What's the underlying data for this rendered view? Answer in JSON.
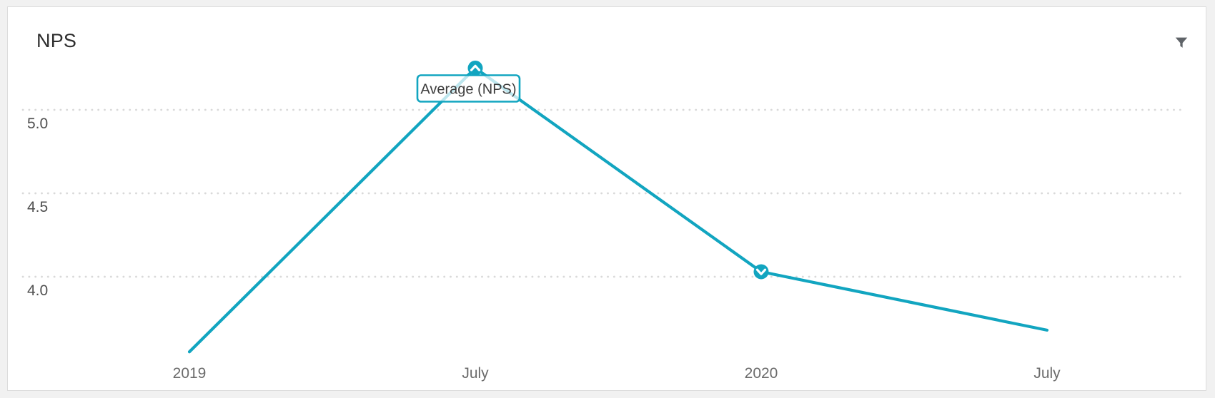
{
  "page": {
    "background_color": "#f1f1f1"
  },
  "card": {
    "title": "NPS",
    "background_color": "#ffffff",
    "border_color": "#dcdcdc",
    "filter_icon": "funnel-icon",
    "filter_icon_color": "#5f6368"
  },
  "chart_data": {
    "type": "line",
    "title": "NPS",
    "categories": [
      "2019",
      "July",
      "2020",
      "July"
    ],
    "series": [
      {
        "name": "Average (NPS)",
        "values": [
          3.55,
          5.25,
          4.03,
          3.68
        ]
      }
    ],
    "yticks": [
      5.0,
      4.5,
      4.0
    ],
    "ytick_labels": [
      "5.0",
      "4.5",
      "4.0"
    ],
    "ylim": [
      3.4,
      5.45
    ],
    "xlabel": "",
    "ylabel": "",
    "grid": "dotted-horizontal",
    "legend": "none",
    "line_color": "#12a5c0",
    "grid_color": "#d9d9d9",
    "ytick_label_color": "#4f4f4f",
    "xtick_label_color": "#6b6b6b",
    "markers": [
      {
        "category_index": 1,
        "value": 5.25,
        "icon": "circle-chevron-up"
      },
      {
        "category_index": 2,
        "value": 4.03,
        "icon": "circle-chevron-down"
      }
    ],
    "tooltip": {
      "label": "Average (NPS)",
      "attached_category_index": 1,
      "text_color": "#3c3c3c",
      "border_color": "#12a5c0"
    }
  }
}
